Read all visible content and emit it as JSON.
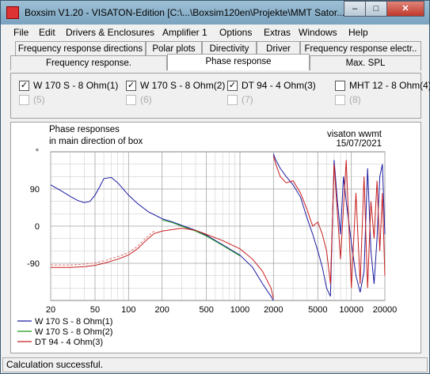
{
  "window": {
    "title": "Boxsim V1.20 - VISATON-Edition [C:\\...\\Boxsim120en\\Projekte\\MMT Sator..."
  },
  "menu": [
    "File",
    "Edit",
    "Drivers & Enclosures",
    "Amplifier 1",
    "Options",
    "Extras",
    "Windows",
    "Help"
  ],
  "tabs_row1": [
    "Frequency response directions",
    "Polar plots",
    "Directivity",
    "Driver",
    "Frequency response electr.."
  ],
  "tabs_row2": [
    "Frequency response.",
    "Phase response",
    "Max. SPL"
  ],
  "active_tab": "Phase response",
  "drivers": [
    {
      "label": "W 170 S - 8 Ohm(1)",
      "checked": true,
      "enabled": true
    },
    {
      "label": "W 170 S - 8 Ohm(2)",
      "checked": true,
      "enabled": true
    },
    {
      "label": "DT 94 - 4 Ohm(3)",
      "checked": true,
      "enabled": true
    },
    {
      "label": "MHT 12 - 8 Ohm(4)",
      "checked": false,
      "enabled": true
    },
    {
      "label": "(5)",
      "checked": false,
      "enabled": false
    },
    {
      "label": "(6)",
      "checked": false,
      "enabled": false
    },
    {
      "label": "(7)",
      "checked": false,
      "enabled": false
    },
    {
      "label": "(8)",
      "checked": false,
      "enabled": false
    }
  ],
  "colors": {
    "series1": "#1a1aa0",
    "series2": "#1a9a1a",
    "series3": "#c81e1e",
    "dashed": "#e07070",
    "grid": "#d0d0d0",
    "plot_bg": "#ffffff"
  },
  "chart_data": {
    "type": "line",
    "title_lines": [
      "Phase responses",
      "in main direction of box"
    ],
    "corner_lines": [
      "visaton wwmt",
      "15/07/2021"
    ],
    "y_unit": "°",
    "xscale": "log",
    "xlim": [
      20,
      20000
    ],
    "ylim": [
      -180,
      180
    ],
    "x_ticks": [
      20,
      50,
      100,
      200,
      500,
      1000,
      2000,
      5000,
      10000,
      20000
    ],
    "x_tick_labels": [
      "20",
      "50",
      "100",
      "200",
      "500",
      "1000",
      "2000",
      "5000",
      "10000",
      "20000"
    ],
    "y_ticks": [
      90,
      0,
      -90
    ],
    "y_tick_labels": [
      "90",
      "0",
      "-90"
    ],
    "series": [
      {
        "name": "W 170 S - 8 Ohm(1)",
        "color": "#1a1aa0",
        "x": [
          20,
          25,
          30,
          35,
          40,
          45,
          50,
          55,
          60,
          70,
          80,
          100,
          120,
          150,
          200,
          250,
          300,
          400,
          500,
          700,
          1000,
          1300,
          1600,
          1900,
          2000,
          2000,
          2100,
          2300,
          2600,
          3000,
          3500,
          4000,
          4500,
          5000,
          5500,
          6000,
          6500,
          7000,
          7500,
          8000,
          8500,
          9000,
          10000,
          11000,
          12000,
          13000,
          14000,
          15000,
          16000,
          17000,
          18000,
          19000,
          20000
        ],
        "y": [
          100,
          85,
          72,
          62,
          57,
          60,
          75,
          95,
          115,
          118,
          105,
          75,
          55,
          35,
          18,
          10,
          2,
          -10,
          -22,
          -45,
          -70,
          -100,
          -140,
          -170,
          -180,
          175,
          160,
          140,
          120,
          100,
          70,
          20,
          -20,
          -60,
          -100,
          -150,
          -170,
          160,
          60,
          -20,
          120,
          60,
          -40,
          -120,
          -160,
          -110,
          140,
          -60,
          -140,
          -30,
          120,
          150,
          -20
        ]
      },
      {
        "name": "W 170 S - 8 Ohm(2)",
        "color": "#1a9a1a",
        "x": [
          200,
          250,
          300,
          400,
          500,
          700,
          1000
        ],
        "y": [
          15,
          8,
          0,
          -12,
          -24,
          -47,
          -72
        ]
      },
      {
        "name": "DT 94 - 4 Ohm(3)",
        "color": "#c81e1e",
        "x": [
          20,
          30,
          40,
          50,
          60,
          80,
          100,
          120,
          150,
          170,
          200,
          250,
          300,
          400,
          500,
          700,
          1000,
          1300,
          1600,
          1900,
          2000,
          2000,
          2100,
          2300,
          2600,
          3000,
          3500,
          4000,
          4500,
          5000,
          5500,
          6000,
          6500,
          7000,
          8000,
          9000,
          10000,
          11000,
          12000,
          13000,
          14000,
          15000,
          16000,
          17000,
          18000,
          19000,
          20000
        ],
        "y": [
          -100,
          -100,
          -98,
          -95,
          -90,
          -80,
          -70,
          -55,
          -30,
          -18,
          -12,
          -8,
          -5,
          -10,
          -20,
          -35,
          -55,
          -80,
          -110,
          -150,
          -175,
          170,
          150,
          120,
          105,
          110,
          80,
          40,
          0,
          10,
          -20,
          -60,
          -140,
          150,
          -80,
          160,
          -150,
          80,
          -140,
          120,
          -150,
          60,
          -30,
          110,
          -60,
          80,
          -120
        ]
      }
    ],
    "legend_position": "bottom-left"
  },
  "status": "Calculation successful."
}
